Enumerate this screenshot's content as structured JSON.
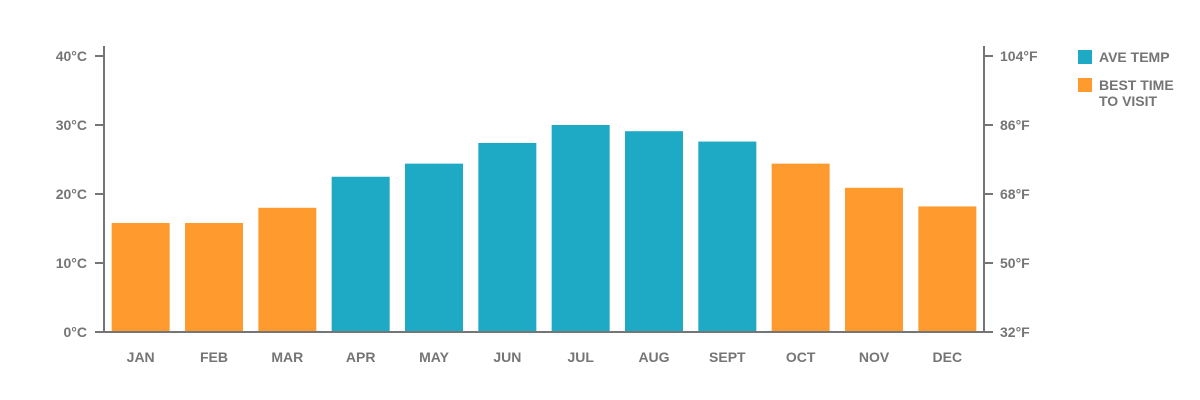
{
  "chart_data": {
    "type": "bar",
    "categories": [
      "JAN",
      "FEB",
      "MAR",
      "APR",
      "MAY",
      "JUN",
      "JUL",
      "AUG",
      "SEPT",
      "OCT",
      "NOV",
      "DEC"
    ],
    "values": [
      15.8,
      15.8,
      18.0,
      22.5,
      24.4,
      27.4,
      30.0,
      29.1,
      27.6,
      24.4,
      20.9,
      18.2
    ],
    "best_time_to_visit": [
      true,
      true,
      true,
      false,
      false,
      false,
      false,
      false,
      false,
      true,
      true,
      true
    ],
    "ylim": [
      0,
      40
    ],
    "y_ticks_left": [
      "0°C",
      "10°C",
      "20°C",
      "30°C",
      "40°C"
    ],
    "y_ticks_right": [
      "32°F",
      "50°F",
      "68°F",
      "86°F",
      "104°F"
    ],
    "grid": false,
    "legend_position": "top-right",
    "legend": [
      {
        "label_lines": [
          "AVE TEMP"
        ],
        "color": "#1eaac4"
      },
      {
        "label_lines": [
          "BEST TIME",
          "TO VISIT"
        ],
        "color": "#ff9a2e"
      }
    ],
    "colors": {
      "ave_temp": "#1eaac4",
      "best_time": "#ff9a2e",
      "axis": "#757575"
    }
  }
}
